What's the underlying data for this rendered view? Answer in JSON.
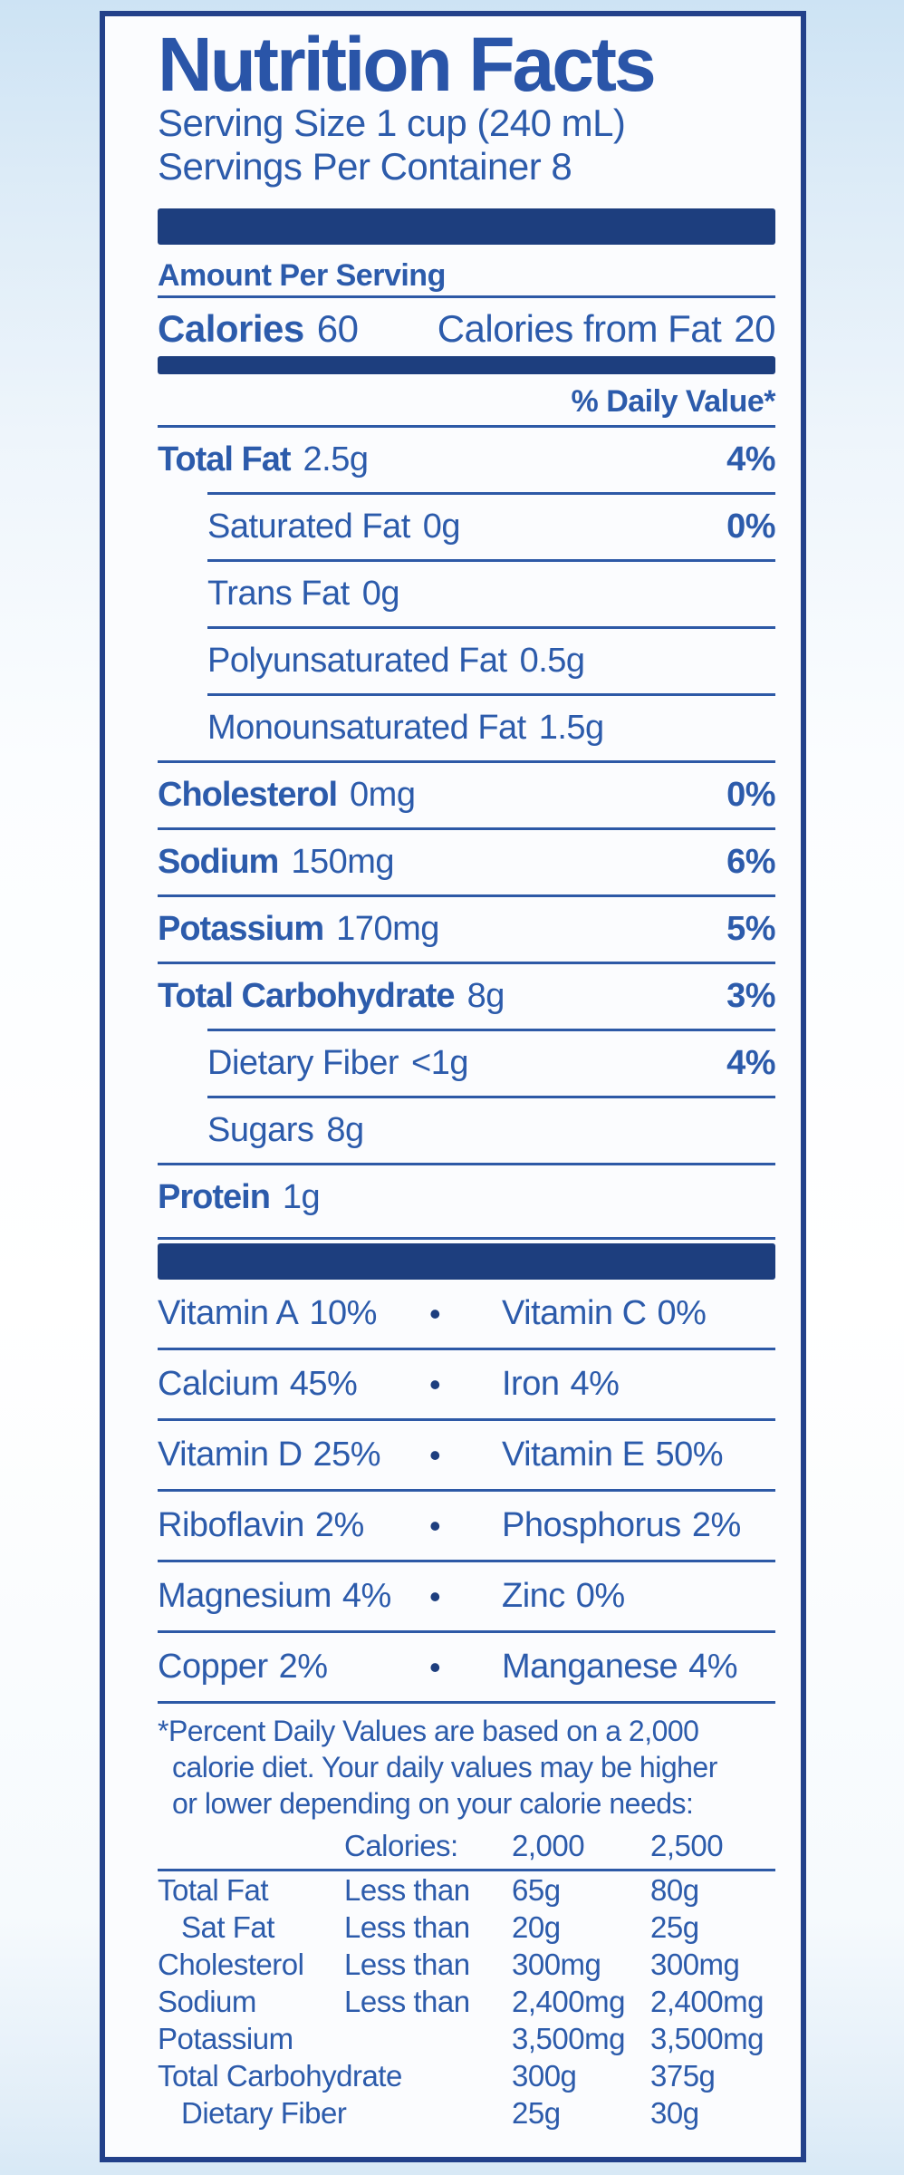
{
  "colors": {
    "text_blue": "#2c5bab",
    "bar_navy": "#1d3e7e",
    "border_navy": "#23418a",
    "page_background": "#cde3f4",
    "label_background": "#fbfcfe"
  },
  "label": {
    "title": "Nutrition Facts",
    "serving_size": "Serving Size 1 cup (240 mL)",
    "servings_per_container": "Servings Per Container 8",
    "amount_per_serving": "Amount Per Serving",
    "calories_label": "Calories",
    "calories_value": "60",
    "calories_from_fat_label": "Calories from Fat",
    "calories_from_fat_value": "20",
    "daily_value_header": "% Daily Value*",
    "bullet": "•",
    "nutrients": [
      {
        "name": "Total Fat",
        "amount": "2.5g",
        "dv": "4%"
      },
      {
        "name": "Saturated Fat",
        "amount": "0g",
        "dv": "0%"
      },
      {
        "name": "Trans Fat",
        "amount": "0g",
        "dv": ""
      },
      {
        "name": "Polyunsaturated Fat",
        "amount": "0.5g",
        "dv": ""
      },
      {
        "name": "Monounsaturated Fat",
        "amount": "1.5g",
        "dv": ""
      },
      {
        "name": "Cholesterol",
        "amount": "0mg",
        "dv": "0%"
      },
      {
        "name": "Sodium",
        "amount": "150mg",
        "dv": "6%"
      },
      {
        "name": "Potassium",
        "amount": "170mg",
        "dv": "5%"
      },
      {
        "name": "Total Carbohydrate",
        "amount": "8g",
        "dv": "3%"
      },
      {
        "name": "Dietary Fiber",
        "amount": "<1g",
        "dv": "4%"
      },
      {
        "name": "Sugars",
        "amount": "8g",
        "dv": ""
      },
      {
        "name": "Protein",
        "amount": "1g",
        "dv": ""
      }
    ],
    "vitamins": [
      {
        "left": {
          "name": "Vitamin A",
          "value": "10%"
        },
        "right": {
          "name": "Vitamin C",
          "value": "0%"
        }
      },
      {
        "left": {
          "name": "Calcium",
          "value": "45%"
        },
        "right": {
          "name": "Iron",
          "value": "4%"
        }
      },
      {
        "left": {
          "name": "Vitamin D",
          "value": "25%"
        },
        "right": {
          "name": "Vitamin E",
          "value": "50%"
        }
      },
      {
        "left": {
          "name": "Riboflavin",
          "value": "2%"
        },
        "right": {
          "name": "Phosphorus",
          "value": "2%"
        }
      },
      {
        "left": {
          "name": "Magnesium",
          "value": "4%"
        },
        "right": {
          "name": "Zinc",
          "value": "0%"
        }
      },
      {
        "left": {
          "name": "Copper",
          "value": "2%"
        },
        "right": {
          "name": "Manganese",
          "value": "4%"
        }
      }
    ],
    "footnote_lines": [
      "*Percent Daily Values are based on a 2,000",
      "calorie diet. Your daily values may be higher",
      "or lower depending on your calorie needs:"
    ],
    "footer_table": {
      "header": {
        "label": "Calories:",
        "col_2000": "2,000",
        "col_2500": "2,500"
      },
      "rows": [
        {
          "name": "Total Fat",
          "qualifier": "Less than",
          "v2000": "65g",
          "v2500": "80g"
        },
        {
          "name": "Sat Fat",
          "qualifier": "Less than",
          "v2000": "20g",
          "v2500": "25g"
        },
        {
          "name": "Cholesterol",
          "qualifier": "Less than",
          "v2000": "300mg",
          "v2500": "300mg"
        },
        {
          "name": "Sodium",
          "qualifier": "Less than",
          "v2000": "2,400mg",
          "v2500": "2,400mg"
        },
        {
          "name": "Potassium",
          "qualifier": "",
          "v2000": "3,500mg",
          "v2500": "3,500mg"
        },
        {
          "name": "Total Carbohydrate",
          "qualifier": "",
          "v2000": "300g",
          "v2500": "375g"
        },
        {
          "name": "Dietary Fiber",
          "qualifier": "",
          "v2000": "25g",
          "v2500": "30g"
        }
      ]
    }
  }
}
